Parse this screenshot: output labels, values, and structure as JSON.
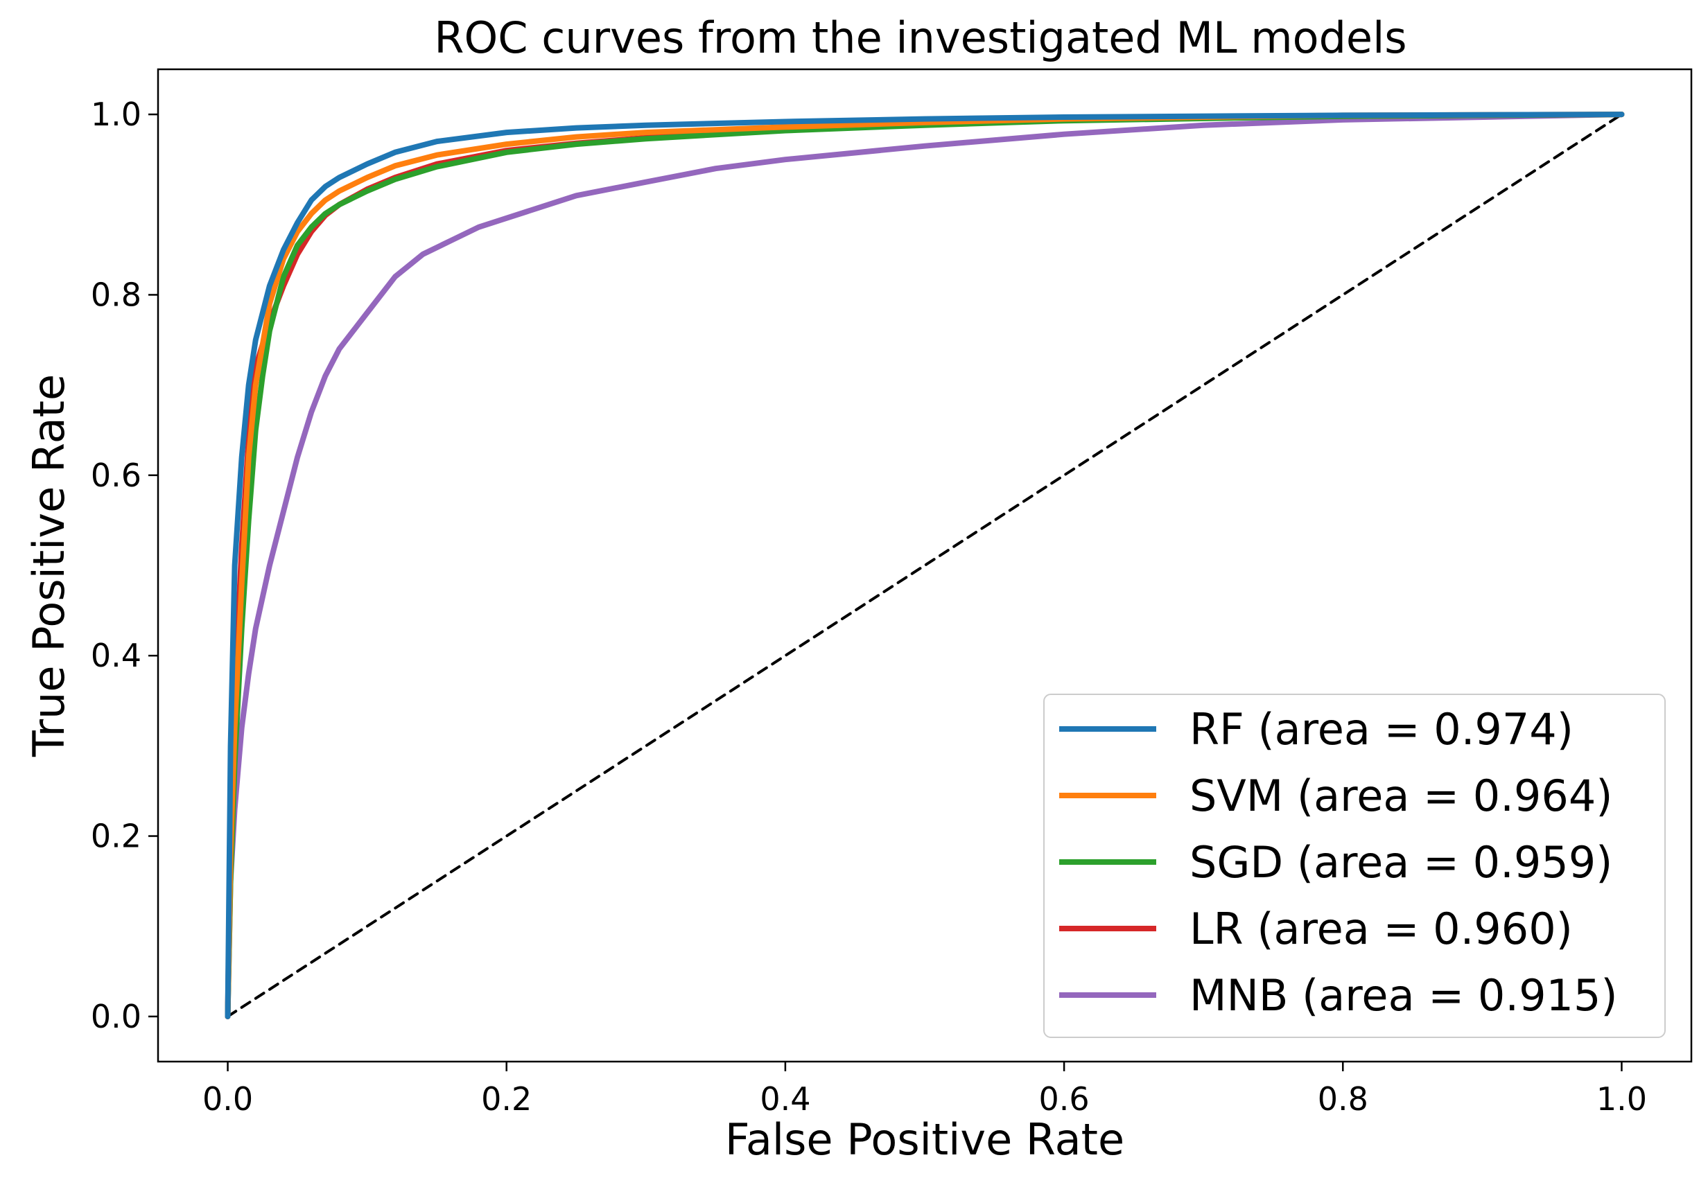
{
  "chart_data": {
    "type": "line",
    "title": "ROC curves from the investigated ML models",
    "xlabel": "False Positive Rate",
    "ylabel": "True Positive Rate",
    "xlim": [
      -0.05,
      1.05
    ],
    "ylim": [
      -0.05,
      1.05
    ],
    "xticks": [
      0.0,
      0.2,
      0.4,
      0.6,
      0.8,
      1.0
    ],
    "yticks": [
      0.0,
      0.2,
      0.4,
      0.6,
      0.8,
      1.0
    ],
    "xtick_labels": [
      "0.0",
      "0.2",
      "0.4",
      "0.6",
      "0.8",
      "1.0"
    ],
    "ytick_labels": [
      "0.0",
      "0.2",
      "0.4",
      "0.6",
      "0.8",
      "1.0"
    ],
    "grid": false,
    "legend_position": "bottom-right",
    "series": [
      {
        "name": "RF (area = 0.974)",
        "color": "#1f77b4",
        "x": [
          0,
          0.002,
          0.005,
          0.01,
          0.015,
          0.02,
          0.03,
          0.04,
          0.05,
          0.06,
          0.07,
          0.08,
          0.1,
          0.12,
          0.15,
          0.2,
          0.25,
          0.3,
          0.4,
          0.5,
          0.6,
          0.8,
          1.0
        ],
        "y": [
          0,
          0.3,
          0.5,
          0.62,
          0.7,
          0.75,
          0.81,
          0.85,
          0.88,
          0.905,
          0.92,
          0.93,
          0.945,
          0.958,
          0.97,
          0.98,
          0.985,
          0.988,
          0.992,
          0.995,
          0.997,
          0.999,
          1.0
        ]
      },
      {
        "name": "SVM (area = 0.964)",
        "color": "#ff7f0e",
        "x": [
          0,
          0.002,
          0.005,
          0.01,
          0.015,
          0.02,
          0.03,
          0.04,
          0.05,
          0.06,
          0.07,
          0.08,
          0.1,
          0.12,
          0.15,
          0.2,
          0.25,
          0.3,
          0.4,
          0.5,
          0.6,
          0.8,
          1.0
        ],
        "y": [
          0,
          0.18,
          0.32,
          0.48,
          0.62,
          0.7,
          0.79,
          0.84,
          0.87,
          0.89,
          0.905,
          0.915,
          0.93,
          0.943,
          0.955,
          0.967,
          0.975,
          0.98,
          0.986,
          0.991,
          0.995,
          0.999,
          1.0
        ]
      },
      {
        "name": "SGD (area = 0.959)",
        "color": "#2ca02c",
        "x": [
          0,
          0.002,
          0.005,
          0.01,
          0.015,
          0.02,
          0.025,
          0.03,
          0.04,
          0.05,
          0.06,
          0.07,
          0.08,
          0.1,
          0.12,
          0.15,
          0.2,
          0.25,
          0.3,
          0.4,
          0.5,
          0.6,
          0.8,
          1.0
        ],
        "y": [
          0,
          0.15,
          0.28,
          0.43,
          0.55,
          0.65,
          0.71,
          0.76,
          0.82,
          0.855,
          0.875,
          0.89,
          0.9,
          0.915,
          0.928,
          0.942,
          0.958,
          0.967,
          0.973,
          0.982,
          0.988,
          0.993,
          0.998,
          1.0
        ]
      },
      {
        "name": "LR (area = 0.960)",
        "color": "#d62728",
        "x": [
          0,
          0.002,
          0.005,
          0.01,
          0.015,
          0.02,
          0.03,
          0.04,
          0.05,
          0.06,
          0.07,
          0.08,
          0.1,
          0.12,
          0.15,
          0.2,
          0.25,
          0.3,
          0.4,
          0.5,
          0.6,
          0.8,
          1.0
        ],
        "y": [
          0,
          0.22,
          0.36,
          0.52,
          0.64,
          0.72,
          0.77,
          0.81,
          0.845,
          0.87,
          0.888,
          0.9,
          0.917,
          0.93,
          0.945,
          0.96,
          0.968,
          0.974,
          0.983,
          0.989,
          0.994,
          0.998,
          1.0
        ]
      },
      {
        "name": "MNB (area = 0.915)",
        "color": "#9467bd",
        "x": [
          0,
          0.002,
          0.005,
          0.01,
          0.015,
          0.02,
          0.03,
          0.04,
          0.05,
          0.06,
          0.07,
          0.08,
          0.1,
          0.12,
          0.14,
          0.16,
          0.18,
          0.2,
          0.25,
          0.3,
          0.35,
          0.4,
          0.5,
          0.6,
          0.7,
          0.8,
          1.0
        ],
        "y": [
          0,
          0.15,
          0.23,
          0.32,
          0.38,
          0.43,
          0.5,
          0.56,
          0.62,
          0.67,
          0.71,
          0.74,
          0.78,
          0.82,
          0.845,
          0.86,
          0.875,
          0.885,
          0.91,
          0.925,
          0.94,
          0.95,
          0.965,
          0.978,
          0.988,
          0.994,
          1.0
        ]
      },
      {
        "name": "chance",
        "color": "#000000",
        "dashed": true,
        "show_in_legend": false,
        "x": [
          0,
          1
        ],
        "y": [
          0,
          1
        ]
      }
    ]
  }
}
